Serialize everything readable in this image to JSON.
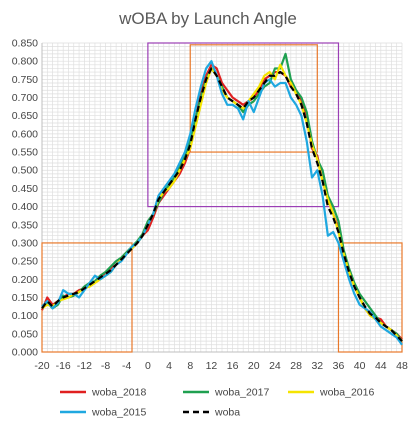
{
  "chart_data": {
    "type": "line",
    "title": "wOBA by Launch Angle",
    "xlabel": "",
    "ylabel": "",
    "xlim": [
      -20,
      48
    ],
    "ylim": [
      0,
      0.85
    ],
    "x_ticks": [
      "-20",
      "-16",
      "-12",
      "-8",
      "-4",
      "0",
      "4",
      "8",
      "12",
      "16",
      "20",
      "24",
      "28",
      "32",
      "36",
      "40",
      "44",
      "48"
    ],
    "y_ticks": [
      "0.000",
      "0.050",
      "0.100",
      "0.150",
      "0.200",
      "0.250",
      "0.300",
      "0.350",
      "0.400",
      "0.450",
      "0.500",
      "0.550",
      "0.600",
      "0.650",
      "0.700",
      "0.750",
      "0.800",
      "0.850"
    ],
    "grid": true,
    "legend_position": "bottom",
    "x": [
      -20,
      -19,
      -18,
      -17,
      -16,
      -15,
      -14,
      -13,
      -12,
      -11,
      -10,
      -9,
      -8,
      -7,
      -6,
      -5,
      -4,
      -3,
      -2,
      -1,
      0,
      1,
      2,
      3,
      4,
      5,
      6,
      7,
      8,
      9,
      10,
      11,
      12,
      13,
      14,
      15,
      16,
      17,
      18,
      19,
      20,
      21,
      22,
      23,
      24,
      25,
      26,
      27,
      28,
      29,
      30,
      31,
      32,
      33,
      34,
      35,
      36,
      37,
      38,
      39,
      40,
      41,
      42,
      43,
      44,
      45,
      46,
      47,
      48
    ],
    "series": [
      {
        "name": "woba_2018",
        "color": "#e02020",
        "dashed": false,
        "values": [
          0.115,
          0.15,
          0.13,
          0.14,
          0.15,
          0.16,
          0.16,
          0.17,
          0.175,
          0.185,
          0.195,
          0.2,
          0.22,
          0.23,
          0.24,
          0.255,
          0.27,
          0.285,
          0.3,
          0.32,
          0.335,
          0.37,
          0.41,
          0.43,
          0.45,
          0.47,
          0.49,
          0.52,
          0.56,
          0.64,
          0.71,
          0.76,
          0.79,
          0.78,
          0.74,
          0.72,
          0.7,
          0.69,
          0.68,
          0.69,
          0.7,
          0.72,
          0.75,
          0.76,
          0.77,
          0.77,
          0.76,
          0.73,
          0.72,
          0.69,
          0.65,
          0.56,
          0.54,
          0.47,
          0.42,
          0.38,
          0.34,
          0.27,
          0.22,
          0.18,
          0.15,
          0.12,
          0.1,
          0.095,
          0.09,
          0.07,
          0.06,
          0.05,
          0.035
        ]
      },
      {
        "name": "woba_2017",
        "color": "#1fa050",
        "dashed": false,
        "values": [
          0.125,
          0.135,
          0.12,
          0.13,
          0.155,
          0.15,
          0.155,
          0.165,
          0.18,
          0.19,
          0.195,
          0.21,
          0.22,
          0.235,
          0.25,
          0.26,
          0.275,
          0.29,
          0.305,
          0.325,
          0.36,
          0.38,
          0.41,
          0.44,
          0.46,
          0.48,
          0.51,
          0.54,
          0.58,
          0.64,
          0.7,
          0.75,
          0.78,
          0.76,
          0.73,
          0.7,
          0.69,
          0.68,
          0.66,
          0.68,
          0.69,
          0.71,
          0.73,
          0.74,
          0.78,
          0.78,
          0.82,
          0.75,
          0.72,
          0.7,
          0.66,
          0.58,
          0.53,
          0.5,
          0.43,
          0.4,
          0.36,
          0.28,
          0.23,
          0.19,
          0.16,
          0.14,
          0.12,
          0.1,
          0.08,
          0.07,
          0.06,
          0.05,
          0.03
        ]
      },
      {
        "name": "woba_2016",
        "color": "#f5e400",
        "dashed": false,
        "values": [
          0.12,
          0.13,
          0.125,
          0.14,
          0.145,
          0.15,
          0.16,
          0.165,
          0.175,
          0.18,
          0.19,
          0.2,
          0.21,
          0.22,
          0.24,
          0.255,
          0.27,
          0.285,
          0.3,
          0.32,
          0.35,
          0.38,
          0.42,
          0.44,
          0.45,
          0.47,
          0.5,
          0.53,
          0.56,
          0.62,
          0.68,
          0.74,
          0.78,
          0.76,
          0.72,
          0.7,
          0.69,
          0.68,
          0.67,
          0.69,
          0.71,
          0.73,
          0.76,
          0.77,
          0.75,
          0.79,
          0.76,
          0.74,
          0.71,
          0.68,
          0.63,
          0.57,
          0.53,
          0.47,
          0.42,
          0.38,
          0.33,
          0.27,
          0.22,
          0.18,
          0.15,
          0.12,
          0.1,
          0.09,
          0.08,
          0.07,
          0.06,
          0.045,
          0.03
        ]
      },
      {
        "name": "woba_2015",
        "color": "#1fa8e0",
        "dashed": false,
        "values": [
          0.125,
          0.14,
          0.12,
          0.135,
          0.17,
          0.16,
          0.16,
          0.15,
          0.17,
          0.19,
          0.21,
          0.2,
          0.21,
          0.22,
          0.24,
          0.25,
          0.27,
          0.29,
          0.3,
          0.32,
          0.35,
          0.38,
          0.43,
          0.45,
          0.47,
          0.49,
          0.52,
          0.55,
          0.6,
          0.67,
          0.73,
          0.78,
          0.8,
          0.76,
          0.71,
          0.68,
          0.68,
          0.67,
          0.64,
          0.69,
          0.66,
          0.7,
          0.74,
          0.75,
          0.73,
          0.74,
          0.74,
          0.7,
          0.68,
          0.65,
          0.58,
          0.48,
          0.5,
          0.43,
          0.32,
          0.33,
          0.3,
          0.25,
          0.2,
          0.16,
          0.13,
          0.12,
          0.11,
          0.09,
          0.07,
          0.06,
          0.05,
          0.04,
          0.02
        ]
      },
      {
        "name": "woba",
        "color": "#000000",
        "dashed": true,
        "values": [
          0.12,
          0.14,
          0.125,
          0.14,
          0.15,
          0.155,
          0.16,
          0.165,
          0.175,
          0.185,
          0.195,
          0.205,
          0.215,
          0.225,
          0.24,
          0.255,
          0.27,
          0.285,
          0.3,
          0.32,
          0.35,
          0.38,
          0.42,
          0.44,
          0.46,
          0.48,
          0.5,
          0.53,
          0.57,
          0.64,
          0.7,
          0.75,
          0.78,
          0.76,
          0.73,
          0.7,
          0.69,
          0.68,
          0.67,
          0.69,
          0.7,
          0.72,
          0.74,
          0.76,
          0.76,
          0.77,
          0.76,
          0.73,
          0.71,
          0.68,
          0.63,
          0.56,
          0.52,
          0.47,
          0.4,
          0.37,
          0.33,
          0.27,
          0.22,
          0.18,
          0.15,
          0.125,
          0.105,
          0.095,
          0.08,
          0.07,
          0.06,
          0.045,
          0.03
        ]
      }
    ],
    "annotations": [
      {
        "shape": "rectangle",
        "color": "#9b3fb5",
        "x0": 0,
        "x1": 36,
        "y0": 0.4,
        "y1": 0.85
      },
      {
        "shape": "rectangle",
        "color": "#e8782a",
        "x0": 8,
        "x1": 32,
        "y0": 0.55,
        "y1": 0.845
      },
      {
        "shape": "rectangle",
        "color": "#e8782a",
        "x0": -20,
        "x1": -3,
        "y0": 0.0,
        "y1": 0.3
      },
      {
        "shape": "rectangle",
        "color": "#e8782a",
        "x0": 36,
        "x1": 48,
        "y0": 0.0,
        "y1": 0.3
      }
    ]
  }
}
